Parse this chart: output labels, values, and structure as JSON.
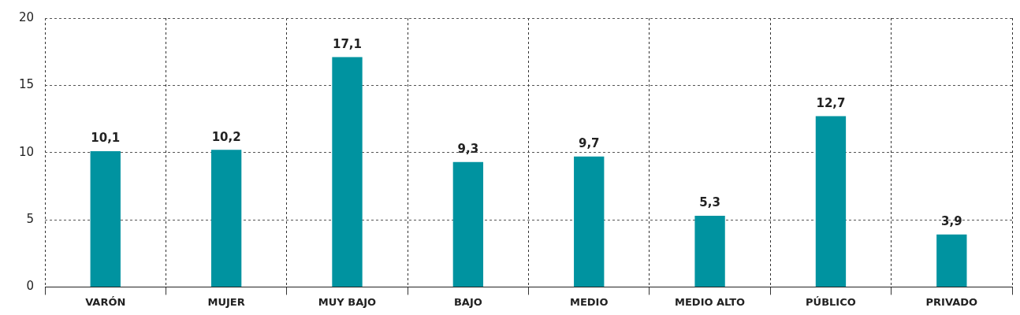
{
  "chart_data": {
    "type": "bar",
    "categories": [
      "VARÓN",
      "MUJER",
      "MUY BAJO",
      "BAJO",
      "MEDIO",
      "MEDIO ALTO",
      "PÚBLICO",
      "PRIVADO"
    ],
    "values": [
      10.1,
      10.2,
      17.1,
      9.3,
      9.7,
      5.3,
      12.7,
      3.9
    ],
    "value_labels": [
      "10,1",
      "10,2",
      "17,1",
      "9,3",
      "9,7",
      "5,3",
      "12,7",
      "3,9"
    ],
    "color": "#0093a0",
    "ylim": [
      0,
      20
    ],
    "yticks": [
      0,
      5,
      10,
      15,
      20
    ],
    "grid": true,
    "legend": false
  }
}
